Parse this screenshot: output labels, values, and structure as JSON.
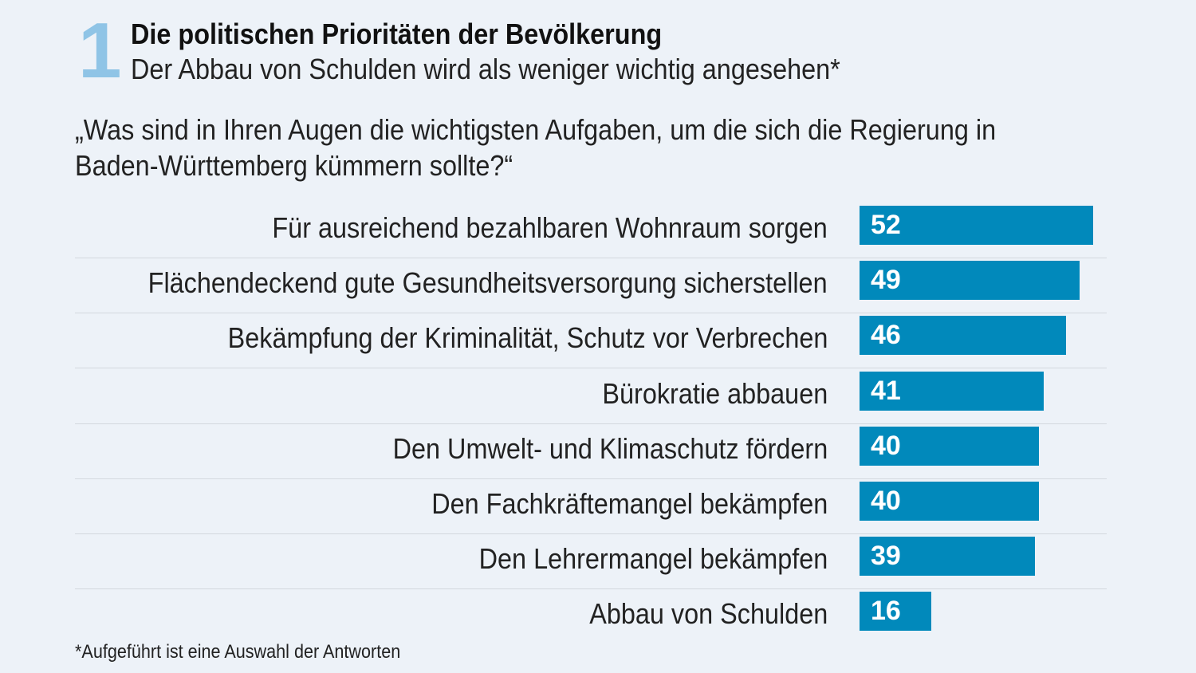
{
  "figure_number": "1",
  "title": "Die politischen Prioritäten der Bevölkerung",
  "subtitle": "Der Abbau von Schulden wird als weniger wichtig angesehen*",
  "question": "„Was sind in Ihren Augen die wichtigsten Aufgaben, um die sich die Regierung in Baden-Württemberg kümmern sollte?“",
  "footnote": "*Aufgeführt ist eine Auswahl der Antworten",
  "colors": {
    "bar": "#0189bb",
    "accent_number": "#8fc4e6",
    "background": "#edf2f8"
  },
  "chart_data": {
    "type": "bar",
    "orientation": "horizontal",
    "title": "Die politischen Prioritäten der Bevölkerung",
    "xlabel": "",
    "ylabel": "",
    "xlim": [
      0,
      55
    ],
    "grid": false,
    "categories": [
      "Für ausreichend bezahlbaren Wohnraum sorgen",
      "Flächendeckend gute Gesundheitsversorgung sicherstellen",
      "Bekämpfung der Kriminalität, Schutz vor Verbrechen",
      "Bürokratie abbauen",
      "Den Umwelt- und Klimaschutz fördern",
      "Den Fachkräftemangel bekämpfen",
      "Den Lehrermangel bekämpfen",
      "Abbau von Schulden"
    ],
    "values": [
      52,
      49,
      46,
      41,
      40,
      40,
      39,
      16
    ],
    "value_labels": [
      "52",
      "49",
      "46",
      "41",
      "40",
      "40",
      "39",
      "16"
    ]
  }
}
